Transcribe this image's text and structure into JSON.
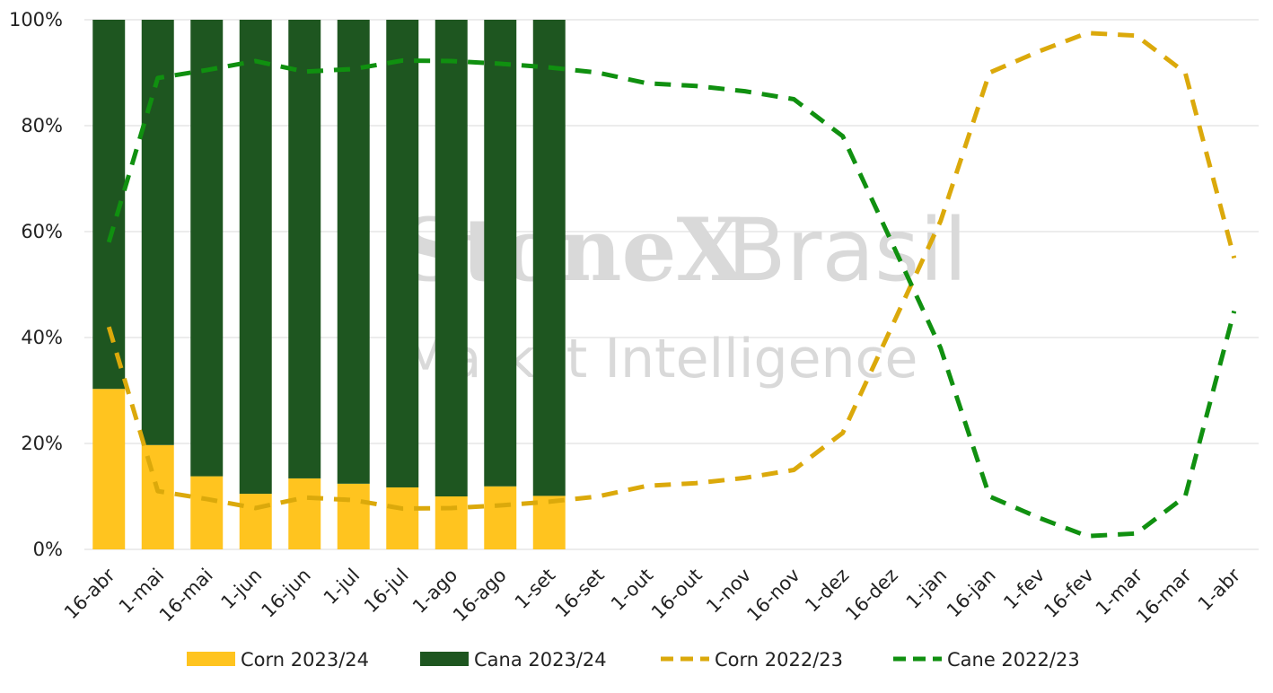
{
  "chart_data": {
    "type": "bar-line",
    "watermark": {
      "brand": "StoneX",
      "sub": "Brasil",
      "line2": "Market Intelligence"
    },
    "categories": [
      "16-abr",
      "1-mai",
      "16-mai",
      "1-jun",
      "16-jun",
      "1-jul",
      "16-jul",
      "1-ago",
      "16-ago",
      "1-set",
      "16-set",
      "1-out",
      "16-out",
      "1-nov",
      "16-nov",
      "1-dez",
      "16-dez",
      "1-jan",
      "16-jan",
      "1-fev",
      "16-fev",
      "1-mar",
      "16-mar",
      "1-abr"
    ],
    "series": [
      {
        "name": "Corn 2023/24",
        "kind": "bar",
        "color": "#ffc41f",
        "values": [
          30.3,
          19.7,
          13.8,
          10.5,
          13.4,
          12.4,
          11.7,
          10.0,
          11.9,
          10.1,
          null,
          null,
          null,
          null,
          null,
          null,
          null,
          null,
          null,
          null,
          null,
          null,
          null,
          null
        ]
      },
      {
        "name": "Cana 2023/24",
        "kind": "bar",
        "color": "#1e5620",
        "values": [
          69.7,
          80.3,
          86.2,
          89.5,
          86.6,
          87.6,
          88.3,
          90.0,
          88.1,
          89.9,
          null,
          null,
          null,
          null,
          null,
          null,
          null,
          null,
          null,
          null,
          null,
          null,
          null,
          null
        ]
      },
      {
        "name": "Corn 2022/23",
        "kind": "line",
        "color": "#dba90b",
        "values": [
          42,
          11,
          9.5,
          7.8,
          9.8,
          9.3,
          7.7,
          7.8,
          8.3,
          9.0,
          10.0,
          12.0,
          12.5,
          13.5,
          15.0,
          22.0,
          42.0,
          62.0,
          90.0,
          94.0,
          97.5,
          97.0,
          90.0,
          55.0
        ]
      },
      {
        "name": "Cane 2022/23",
        "kind": "line",
        "color": "#109010",
        "values": [
          58,
          89,
          90.5,
          92.2,
          90.2,
          90.7,
          92.3,
          92.2,
          91.7,
          91.0,
          90.0,
          88.0,
          87.5,
          86.5,
          85.0,
          78.0,
          58.0,
          38.0,
          10.0,
          6.0,
          2.5,
          3.0,
          10.0,
          45.0
        ]
      }
    ],
    "ylim": [
      0,
      100
    ],
    "yticks": [
      {
        "value": 0,
        "label": "0%"
      },
      {
        "value": 20,
        "label": "20%"
      },
      {
        "value": 40,
        "label": "40%"
      },
      {
        "value": 60,
        "label": "60%"
      },
      {
        "value": 80,
        "label": "80%"
      },
      {
        "value": 100,
        "label": "100%"
      }
    ],
    "grid": true,
    "legend": "bottom"
  }
}
